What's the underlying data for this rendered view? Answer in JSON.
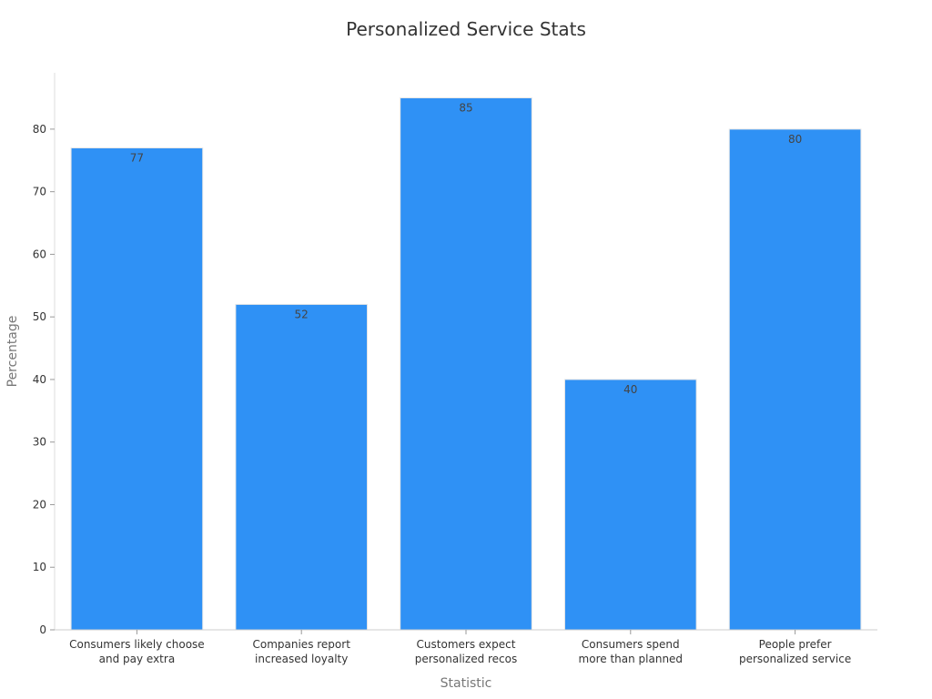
{
  "chart_data": {
    "type": "bar",
    "title": "Personalized Service Stats",
    "xlabel": "Statistic",
    "ylabel": "Percentage",
    "categories": [
      [
        "Consumers likely choose",
        "and pay extra"
      ],
      [
        "Companies report",
        "increased loyalty"
      ],
      [
        "Customers expect",
        "personalized recos"
      ],
      [
        "Consumers spend",
        "more than planned"
      ],
      [
        "People prefer",
        "personalized service"
      ]
    ],
    "values": [
      77,
      52,
      85,
      40,
      80
    ],
    "ylim": [
      0,
      89
    ],
    "yticks": [
      0,
      10,
      20,
      30,
      40,
      50,
      60,
      70,
      80
    ],
    "bar_color": "#2f91f5",
    "grid": false,
    "legend": "none"
  }
}
